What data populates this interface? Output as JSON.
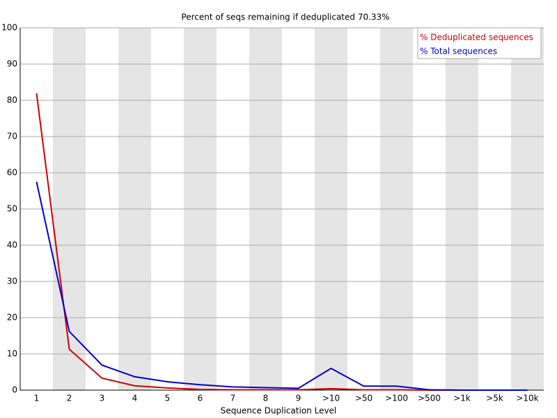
{
  "chart_data": {
    "type": "line",
    "title": "Percent of seqs remaining if deduplicated 70.33%",
    "x_label": "Sequence Duplication Level",
    "categories": [
      "1",
      "2",
      "3",
      "4",
      "5",
      "6",
      "7",
      "8",
      "9",
      ">10",
      ">50",
      ">100",
      ">500",
      ">1k",
      ">5k",
      ">10k"
    ],
    "series": [
      {
        "name": "% Deduplicated sequences",
        "color": "#cc0000",
        "values": [
          81.9,
          11.3,
          3.3,
          1.2,
          0.6,
          0.2,
          0.1,
          0.1,
          0.1,
          0.4,
          0.1,
          0.1,
          0,
          0,
          0,
          0
        ]
      },
      {
        "name": "% Total sequences",
        "color": "#0000cc",
        "values": [
          57.5,
          16.2,
          6.9,
          3.7,
          2.3,
          1.5,
          0.9,
          0.7,
          0.5,
          6.0,
          1.1,
          1.1,
          0.1,
          0,
          0,
          0
        ]
      }
    ],
    "ylim": [
      0,
      100
    ],
    "yticks": [
      0,
      10,
      20,
      30,
      40,
      50,
      60,
      70,
      80,
      90,
      100
    ],
    "grid": true,
    "legend": "upper right"
  }
}
